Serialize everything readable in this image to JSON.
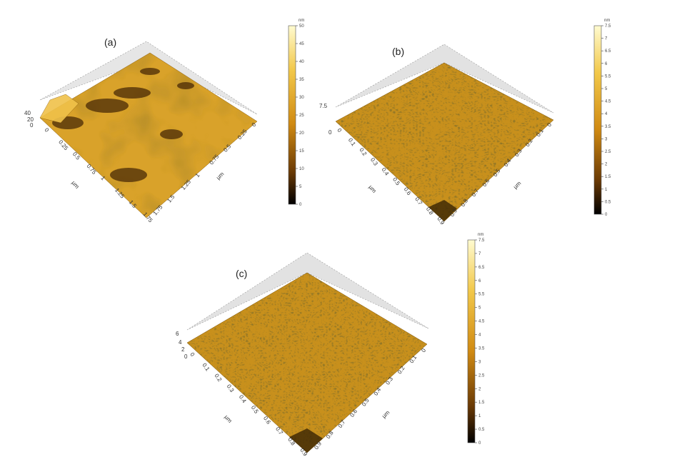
{
  "figure": {
    "panels": [
      {
        "id": "a",
        "label": "(a)",
        "z_ticks": [
          "40",
          "20",
          "0"
        ],
        "x_ticks": [
          "0",
          "0.25",
          "0.5",
          "0.75",
          "1",
          "1.25",
          "1.5",
          "1.75"
        ],
        "x_unit": "µm",
        "y_ticks": [
          "0",
          "0.25",
          "0.5",
          "0.75",
          "1",
          "1.25",
          "1.5",
          "1.75"
        ],
        "y_unit": "µm",
        "colorbar": {
          "unit": "nm",
          "ticks": [
            "0",
            "5",
            "10",
            "15",
            "20",
            "25",
            "30",
            "35",
            "40",
            "45",
            "50"
          ]
        }
      },
      {
        "id": "b",
        "label": "(b)",
        "z_ticks": [
          "7.5",
          "0"
        ],
        "x_ticks": [
          "0",
          "0.1",
          "0.2",
          "0.3",
          "0.4",
          "0.5",
          "0.6",
          "0.7",
          "0.8",
          "0.9"
        ],
        "x_unit": "µm",
        "y_ticks": [
          "0",
          "0.1",
          "0.2",
          "0.3",
          "0.4",
          "0.5",
          "0.6",
          "0.7",
          "0.8",
          "0.9"
        ],
        "y_unit": "µm",
        "colorbar": {
          "unit": "nm",
          "ticks": [
            "0",
            "0.5",
            "1",
            "1.5",
            "2",
            "2.5",
            "3",
            "3.5",
            "4",
            "4.5",
            "5",
            "5.5",
            "6",
            "6.5",
            "7",
            "7.5"
          ]
        }
      },
      {
        "id": "c",
        "label": "(c)",
        "z_ticks": [
          "6",
          "4",
          "2",
          "0"
        ],
        "x_ticks": [
          "0",
          "0.1",
          "0.2",
          "0.3",
          "0.4",
          "0.5",
          "0.6",
          "0.7",
          "0.8",
          "0.9"
        ],
        "x_unit": "µm",
        "y_ticks": [
          "0",
          "0.1",
          "0.2",
          "0.3",
          "0.4",
          "0.5",
          "0.6",
          "0.7",
          "0.8",
          "0.9"
        ],
        "y_unit": "µm",
        "colorbar": {
          "unit": "nm",
          "ticks": [
            "0",
            "0.5",
            "1",
            "1.5",
            "2",
            "2.5",
            "3",
            "3.5",
            "4",
            "4.5",
            "5",
            "5.5",
            "6",
            "6.5",
            "7",
            "7.5"
          ]
        }
      }
    ],
    "colors": {
      "surface_light": "#e8b53a",
      "surface_mid": "#c8901c",
      "surface_dark": "#5a3a08",
      "colorbar_top": "#fffbd0",
      "colorbar_mid": "#e2a01e",
      "colorbar_bottom": "#000000",
      "box_face": "#dcdcdc"
    }
  }
}
